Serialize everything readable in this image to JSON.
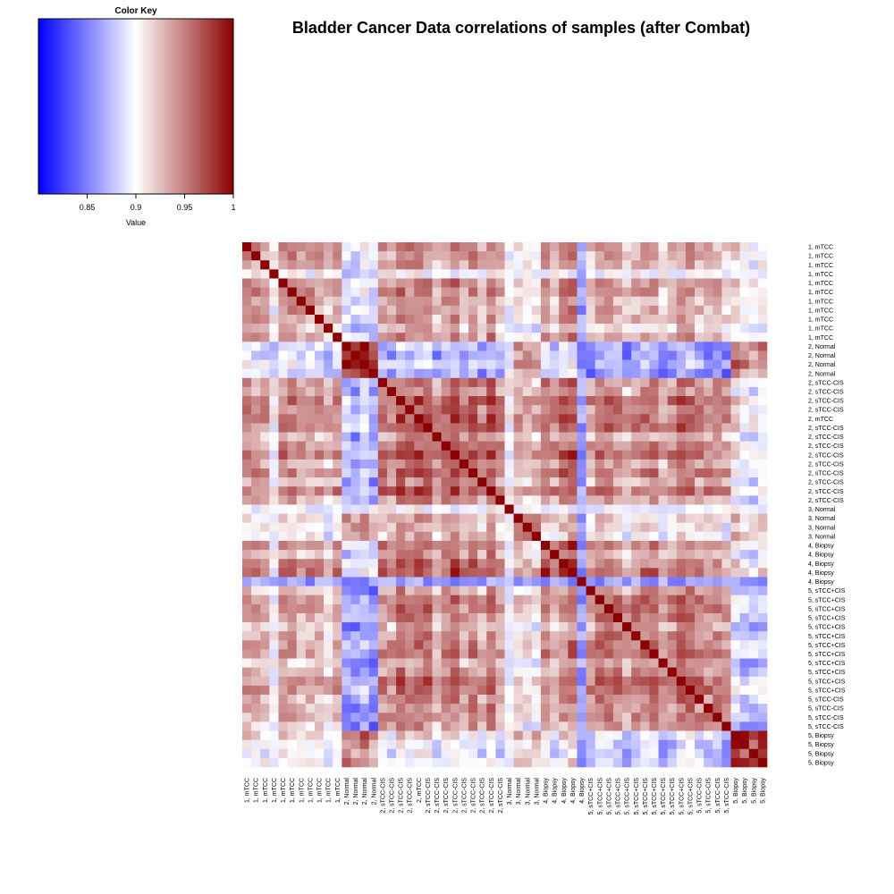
{
  "title": "Bladder Cancer Data correlations of samples (after Combat)",
  "color_key": {
    "title": "Color Key",
    "xlabel": "Value",
    "range": [
      0.8,
      1.0
    ],
    "ticks": [
      0.85,
      0.9,
      0.95,
      1
    ],
    "tick_labels": [
      "0.85",
      "0.9",
      "0.95",
      "1"
    ],
    "low_color": "#0000ff",
    "mid_color": "#ffffff",
    "high_color": "#8b0000",
    "mid_value": 0.9
  },
  "chart_data": {
    "type": "heatmap",
    "title": "Bladder Cancer Data correlations of samples (after Combat)",
    "value_label": "Value",
    "value_range": [
      0.8,
      1.0
    ],
    "row_labels": [
      "1, mTCC",
      "1, mTCC",
      "1, mTCC",
      "1, mTCC",
      "1, mTCC",
      "1, mTCC",
      "1, mTCC",
      "1, mTCC",
      "1, mTCC",
      "1, mTCC",
      "1, mTCC",
      "2, Normal",
      "2, Normal",
      "2, Normal",
      "2, Normal",
      "2, sTCC-CIS",
      "2, sTCC-CIS",
      "2, sTCC-CIS",
      "2, sTCC-CIS",
      "2, mTCC",
      "2, sTCC-CIS",
      "2, sTCC-CIS",
      "2, sTCC-CIS",
      "2, sTCC-CIS",
      "2, sTCC-CIS",
      "2, sTCC-CIS",
      "2, sTCC-CIS",
      "2, sTCC-CIS",
      "2, sTCC-CIS",
      "3, Normal",
      "3, Normal",
      "3, Normal",
      "3, Normal",
      "4, Biopsy",
      "4, Biopsy",
      "4, Biopsy",
      "4, Biopsy",
      "4, Biopsy",
      "5, sTCC+CIS",
      "5, sTCC+CIS",
      "5, sTCC+CIS",
      "5, sTCC+CIS",
      "5, sTCC+CIS",
      "5, sTCC+CIS",
      "5, sTCC+CIS",
      "5, sTCC+CIS",
      "5, sTCC+CIS",
      "5, sTCC+CIS",
      "5, sTCC+CIS",
      "5, sTCC+CIS",
      "5, sTCC-CIS",
      "5, sTCC-CIS",
      "5, sTCC-CIS",
      "5, sTCC-CIS",
      "5, Biopsy",
      "5, Biopsy",
      "5, Biopsy",
      "5, Biopsy"
    ],
    "col_labels": [
      "1, mTCC",
      "1, mTCC",
      "1, mTCC",
      "1, mTCC",
      "1, mTCC",
      "1, mTCC",
      "1, mTCC",
      "1, mTCC",
      "1, mTCC",
      "1, mTCC",
      "1, mTCC",
      "2, Normal",
      "2, Normal",
      "2, Normal",
      "2, Normal",
      "2, sTCC-CIS",
      "2, sTCC-CIS",
      "2, sTCC-CIS",
      "2, sTCC-CIS",
      "2, mTCC",
      "2, sTCC-CIS",
      "2, sTCC-CIS",
      "2, sTCC-CIS",
      "2, sTCC-CIS",
      "2, sTCC-CIS",
      "2, sTCC-CIS",
      "2, sTCC-CIS",
      "2, sTCC-CIS",
      "2, sTCC-CIS",
      "3, Normal",
      "3, Normal",
      "3, Normal",
      "3, Normal",
      "4, Biopsy",
      "4, Biopsy",
      "4, Biopsy",
      "4, Biopsy",
      "4, Biopsy",
      "5, sTCC+CIS",
      "5, sTCC+CIS",
      "5, sTCC+CIS",
      "5, sTCC+CIS",
      "5, sTCC+CIS",
      "5, sTCC+CIS",
      "5, sTCC+CIS",
      "5, sTCC+CIS",
      "5, sTCC+CIS",
      "5, sTCC+CIS",
      "5, sTCC+CIS",
      "5, sTCC+CIS",
      "5, sTCC-CIS",
      "5, sTCC-CIS",
      "5, sTCC-CIS",
      "5, sTCC-CIS",
      "5, Biopsy",
      "5, Biopsy",
      "5, Biopsy",
      "5, Biopsy"
    ],
    "diagonal_value": 1.0,
    "block_means": [
      [
        0.935,
        0.885,
        0.935,
        0.905,
        0.935,
        0.925,
        0.925,
        0.9
      ],
      [
        0.885,
        0.98,
        0.87,
        0.94,
        0.88,
        0.86,
        0.86,
        0.945
      ],
      [
        0.935,
        0.87,
        0.95,
        0.925,
        0.95,
        0.94,
        0.945,
        0.895
      ],
      [
        0.905,
        0.94,
        0.925,
        0.96,
        0.92,
        0.91,
        0.91,
        0.92
      ],
      [
        0.935,
        0.88,
        0.95,
        0.92,
        0.965,
        0.94,
        0.94,
        0.9
      ],
      [
        0.925,
        0.86,
        0.94,
        0.91,
        0.94,
        0.945,
        0.945,
        0.88
      ],
      [
        0.925,
        0.86,
        0.945,
        0.91,
        0.94,
        0.945,
        0.95,
        0.88
      ],
      [
        0.9,
        0.945,
        0.895,
        0.92,
        0.9,
        0.88,
        0.88,
        0.975
      ]
    ],
    "outlier_samples": [
      {
        "label": "4, Biopsy",
        "index": 37,
        "typical_correlation": 0.86
      },
      {
        "label": "3, Normal",
        "index": 29,
        "typical_correlation": 0.9
      },
      {
        "label": "1, mTCC",
        "index": 3,
        "typical_correlation": 0.9
      }
    ],
    "grid": false,
    "legend": "top-left"
  }
}
